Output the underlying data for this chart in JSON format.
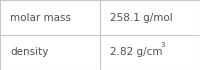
{
  "rows": [
    {
      "label": "molar mass",
      "value": "258.1 g/mol",
      "superscript": null
    },
    {
      "label": "density",
      "value": "2.82 g/cm",
      "superscript": "3"
    }
  ],
  "bg_color": "#ffffff",
  "border_color": "#c8c8c8",
  "text_color": "#505050",
  "label_fontsize": 7.5,
  "value_fontsize": 7.5,
  "super_fontsize": 5,
  "fig_width": 2.0,
  "fig_height": 0.7
}
